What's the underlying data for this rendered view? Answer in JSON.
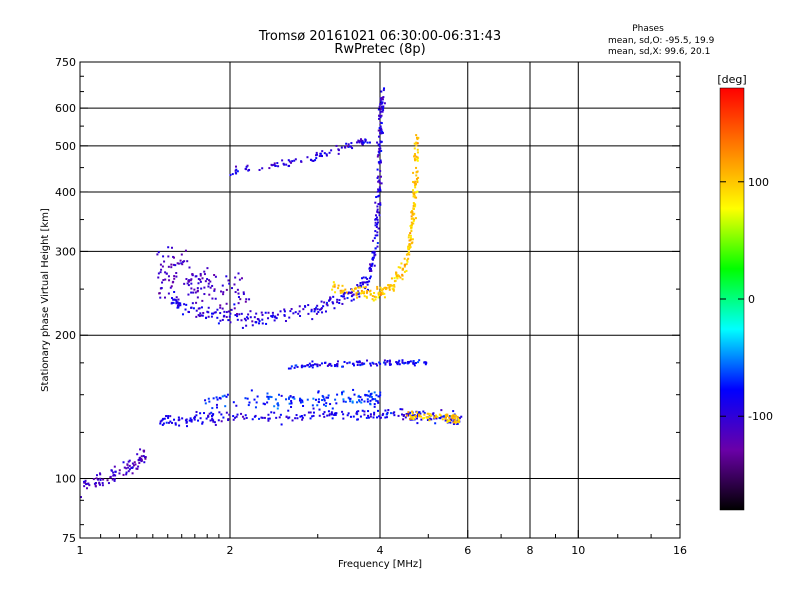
{
  "chart_data": {
    "type": "scatter",
    "title": "Tromsø 20161021 06:30:00-06:31:43",
    "subtitle": "RwPretec (8p)",
    "stats": {
      "heading": "Phases",
      "line_o": "mean, sd,O: -95.5, 19.9",
      "line_x": "mean, sd,X:  99.6, 20.1"
    },
    "xlabel": "Frequency [MHz]",
    "ylabel": "Stationary phase Virtual Height [km]",
    "x_scale": "log",
    "y_scale": "log",
    "xlim": [
      1,
      16
    ],
    "ylim": [
      75,
      750
    ],
    "x_ticks": [
      1,
      2,
      4,
      6,
      8,
      10,
      16
    ],
    "x_tick_labels": [
      "1",
      "2",
      "4",
      "6",
      "8",
      "10",
      "16"
    ],
    "y_ticks": [
      75,
      100,
      200,
      300,
      400,
      500,
      600,
      750
    ],
    "y_tick_labels": [
      "75",
      "100",
      "200",
      "300",
      "400",
      "500",
      "600",
      "750"
    ],
    "grid": true,
    "colorbar": {
      "label": "[deg]",
      "range": [
        -180,
        180
      ],
      "ticks": [
        -100,
        0,
        100
      ],
      "tick_labels": [
        "-100",
        "0",
        "100"
      ],
      "stops": [
        "#000000",
        "#6a00a8",
        "#0000ff",
        "#00ffff",
        "#00ff00",
        "#ffff00",
        "#ff8000",
        "#ff0000"
      ]
    },
    "series": [
      {
        "traces": [
          {
            "f": [
              1.52,
              1.6,
              1.8,
              2.0,
              2.3,
              2.6,
              3.0,
              3.3,
              3.6,
              3.8,
              3.9,
              3.95,
              3.98,
              4.0,
              4.02,
              4.04
            ],
            "h": [
              240,
              230,
              222,
              217,
              217,
              220,
              228,
              236,
              248,
              265,
              300,
              360,
              430,
              520,
              600,
              640
            ],
            "phase": -95,
            "spread": 0.03
          },
          {
            "f": [
              3.2,
              3.6,
              3.9,
              4.1,
              4.3,
              4.5,
              4.6,
              4.65,
              4.7,
              4.72,
              4.75
            ],
            "h": [
              255,
              246,
              244,
              248,
              258,
              280,
              310,
              350,
              400,
              450,
              520
            ],
            "phase": 100,
            "spread": 0.025
          },
          {
            "f": [
              1.45,
              1.6,
              1.8,
              2.0,
              2.5,
              3.0,
              3.5,
              4.0,
              4.5,
              5.0,
              5.5,
              5.8
            ],
            "h": [
              132,
              133,
              134,
              135,
              135,
              136,
              136,
              136,
              136,
              135,
              134,
              133
            ],
            "phase": -90,
            "spread": 0.025
          },
          {
            "f": [
              4.5,
              5.0,
              5.5,
              5.8
            ],
            "h": [
              136,
              135,
              134,
              133
            ],
            "phase": 100,
            "spread": 0.02
          },
          {
            "f": [
              1.8,
              2.2,
              2.6,
              3.0,
              3.4,
              3.8,
              4.0
            ],
            "h": [
              145,
              146,
              146,
              147,
              147,
              148,
              148
            ],
            "phase": -70,
            "spread": 0.035
          },
          {
            "f": [
              2.6,
              3.0,
              3.5,
              4.0,
              4.5,
              5.0
            ],
            "h": [
              172,
              173,
              174,
              175,
              175,
              175
            ],
            "phase": -85,
            "spread": 0.012
          },
          {
            "f": [
              2.0,
              2.5,
              3.0,
              3.5,
              3.8
            ],
            "h": [
              440,
              455,
              475,
              500,
              515
            ],
            "phase": -95,
            "spread": 0.015
          },
          {
            "f": [
              1.0,
              1.1,
              1.2,
              1.3,
              1.35
            ],
            "h": [
              96,
              99,
              103,
              108,
              112
            ],
            "phase": -110,
            "spread": 0.03
          },
          {
            "f": [
              1.42,
              1.5,
              1.6,
              1.7,
              1.8,
              2.0,
              2.2
            ],
            "h": [
              260,
              270,
              280,
              260,
              250,
              245,
              240
            ],
            "phase": -110,
            "spread": 0.1
          }
        ]
      }
    ]
  }
}
